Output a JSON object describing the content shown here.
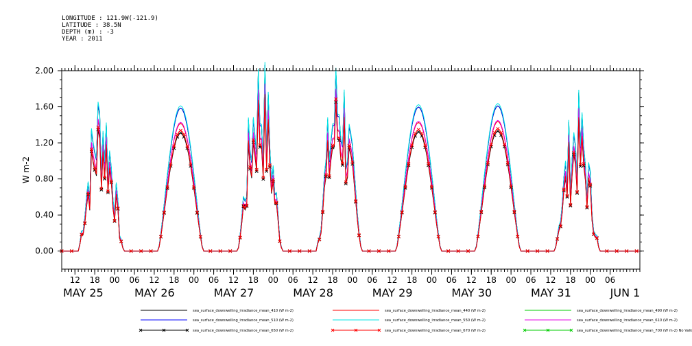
{
  "header": {
    "longitude": "LONGITUDE : 121.9W(-121.9)",
    "latitude": "LATITUDE : 38.5N",
    "depth": "DEPTH (m) : -3",
    "year": "YEAR : 2011"
  },
  "chart_data": {
    "type": "line",
    "title": "",
    "ylabel": "W m-2",
    "xlabel": "",
    "ylim": [
      -0.2,
      2.0
    ],
    "y_ticks": [
      "0.00",
      "0.40",
      "0.80",
      "1.20",
      "1.60",
      "2.00"
    ],
    "y_tick_values": [
      0.0,
      0.4,
      0.8,
      1.2,
      1.6,
      2.0
    ],
    "x_range_hours": [
      "2011-05-25T08:00",
      "2011-06-01T15:00"
    ],
    "x_hour_ticks": [
      {
        "t": "2011-05-25T12:00",
        "label": "12"
      },
      {
        "t": "2011-05-25T18:00",
        "label": "18"
      },
      {
        "t": "2011-05-26T00:00",
        "label": "00"
      },
      {
        "t": "2011-05-26T06:00",
        "label": "06"
      },
      {
        "t": "2011-05-26T12:00",
        "label": "12"
      },
      {
        "t": "2011-05-26T18:00",
        "label": "18"
      },
      {
        "t": "2011-05-27T00:00",
        "label": "00"
      },
      {
        "t": "2011-05-27T06:00",
        "label": "06"
      },
      {
        "t": "2011-05-27T12:00",
        "label": "12"
      },
      {
        "t": "2011-05-27T18:00",
        "label": "18"
      },
      {
        "t": "2011-05-28T00:00",
        "label": "00"
      },
      {
        "t": "2011-05-28T06:00",
        "label": "06"
      },
      {
        "t": "2011-05-28T12:00",
        "label": "12"
      },
      {
        "t": "2011-05-28T18:00",
        "label": "18"
      },
      {
        "t": "2011-05-29T00:00",
        "label": "00"
      },
      {
        "t": "2011-05-29T06:00",
        "label": "06"
      },
      {
        "t": "2011-05-29T12:00",
        "label": "12"
      },
      {
        "t": "2011-05-29T18:00",
        "label": "18"
      },
      {
        "t": "2011-05-30T00:00",
        "label": "00"
      },
      {
        "t": "2011-05-30T06:00",
        "label": "06"
      },
      {
        "t": "2011-05-30T12:00",
        "label": "12"
      },
      {
        "t": "2011-05-30T18:00",
        "label": "18"
      },
      {
        "t": "2011-05-31T00:00",
        "label": "00"
      },
      {
        "t": "2011-05-31T06:00",
        "label": "06"
      },
      {
        "t": "2011-05-31T12:00",
        "label": "12"
      },
      {
        "t": "2011-05-31T18:00",
        "label": "18"
      },
      {
        "t": "2011-06-01T00:00",
        "label": "00"
      },
      {
        "t": "2011-06-01T06:00",
        "label": "06"
      }
    ],
    "x_date_labels": [
      {
        "t": "2011-05-25T08:00",
        "label": "MAY 25"
      },
      {
        "t": "2011-05-26T06:00",
        "label": "MAY 26"
      },
      {
        "t": "2011-05-27T06:00",
        "label": "MAY 27"
      },
      {
        "t": "2011-05-28T06:00",
        "label": "MAY 28"
      },
      {
        "t": "2011-05-29T06:00",
        "label": "MAY 29"
      },
      {
        "t": "2011-05-30T06:00",
        "label": "MAY 30"
      },
      {
        "t": "2011-05-31T06:00",
        "label": "MAY 31"
      },
      {
        "t": "2011-06-01T06:00",
        "label": "JUN  1"
      }
    ],
    "days": [
      {
        "date": "2011-05-25",
        "sunrise_hour": 13.0,
        "sunset_hour": 26.7,
        "peak": 1.1,
        "cloudy": true
      },
      {
        "date": "2011-05-26",
        "sunrise_hour": 13.2,
        "sunset_hour": 26.8,
        "peak": 1.31,
        "cloudy": false
      },
      {
        "date": "2011-05-27",
        "sunrise_hour": 13.2,
        "sunset_hour": 26.8,
        "peak": 1.33,
        "cloudy": true
      },
      {
        "date": "2011-05-28",
        "sunrise_hour": 13.0,
        "sunset_hour": 26.8,
        "peak": 1.3,
        "cloudy": true
      },
      {
        "date": "2011-05-29",
        "sunrise_hour": 13.2,
        "sunset_hour": 26.8,
        "peak": 1.32,
        "cloudy": false
      },
      {
        "date": "2011-05-30",
        "sunrise_hour": 13.2,
        "sunset_hour": 26.8,
        "peak": 1.33,
        "cloudy": false
      },
      {
        "date": "2011-05-31",
        "sunrise_hour": 13.0,
        "sunset_hour": 26.8,
        "peak": 1.02,
        "cloudy": true
      }
    ],
    "series": [
      {
        "name": "sea_surface_downwelling_irradiance_mean_410 (W m-2)",
        "color": "#000000",
        "scale": 1.21,
        "marker": "none"
      },
      {
        "name": "sea_surface_downwelling_irradiance_mean_440 (W m-2)",
        "color": "#ff0000",
        "scale": 1.08,
        "marker": "none"
      },
      {
        "name": "sea_surface_downwelling_irradiance_mean_490 (W m-2)",
        "color": "#00cc00",
        "scale": 1.21,
        "marker": "none"
      },
      {
        "name": "sea_surface_downwelling_irradiance_mean_510 (W m-2)",
        "color": "#0000ff",
        "scale": 1.21,
        "marker": "none"
      },
      {
        "name": "sea_surface_downwelling_irradiance_mean_550 (W m-2)",
        "color": "#00e5e5",
        "scale": 1.23,
        "marker": "none"
      },
      {
        "name": "sea_surface_downwelling_irradiance_mean_610 (W m-2)",
        "color": "#e500e5",
        "scale": 1.09,
        "marker": "none"
      },
      {
        "name": "sea_surface_downwelling_irradiance_mean_650 (W m-2)",
        "color": "#000000",
        "scale": 1.0,
        "marker": "x"
      },
      {
        "name": "sea_surface_downwelling_irradiance_mean_670 (W m-2)",
        "color": "#ff0000",
        "scale": 1.02,
        "marker": "x"
      },
      {
        "name": "sea_surface_downwelling_irradiance_mean_700 (W m-2) No Valid Data",
        "color": "#00cc00",
        "scale": 0,
        "marker": "x",
        "no_valid_data": true
      }
    ]
  }
}
